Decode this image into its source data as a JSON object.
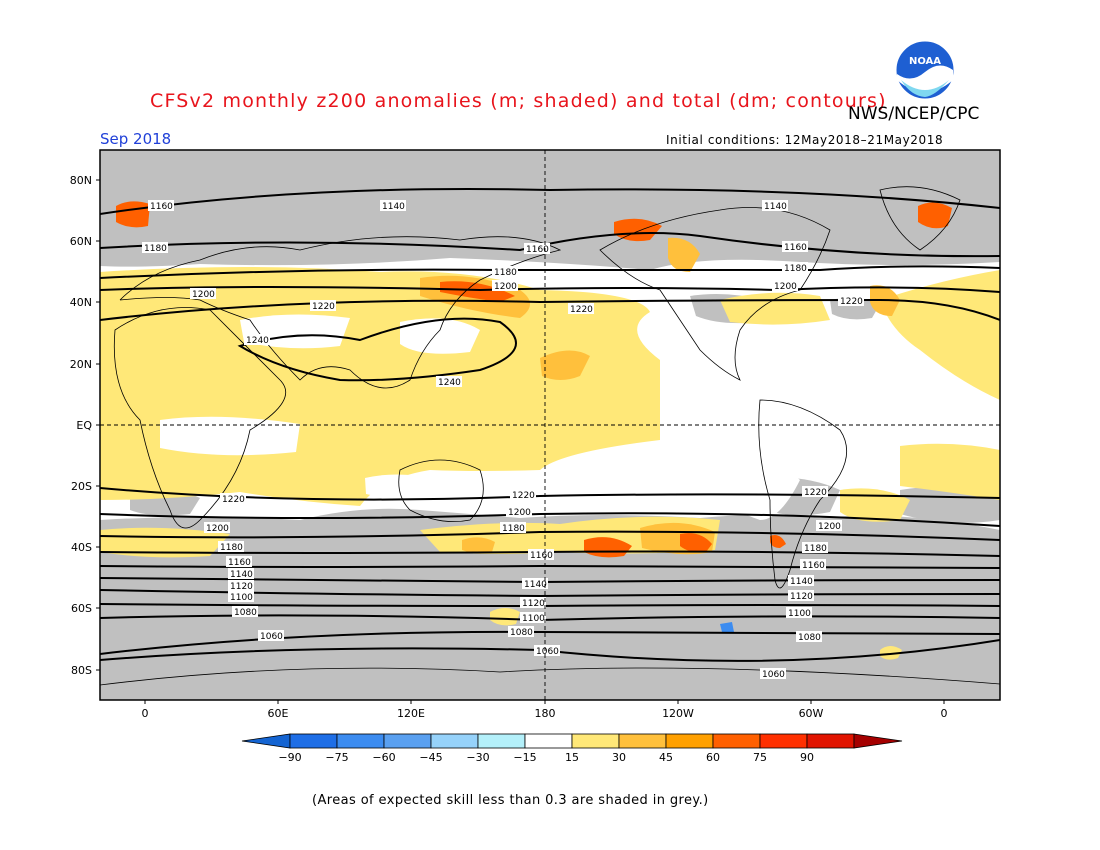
{
  "header": {
    "title": "CFSv2 monthly z200 anomalies (m; shaded) and total (dm; contours)",
    "agency": "NWS/NCEP/CPC",
    "month": "Sep 2018",
    "initial_conditions": "Initial conditions: 12May2018–21May2018"
  },
  "logo": {
    "text": "NOAA",
    "icon": "noaa-logo"
  },
  "axes": {
    "lat_labels": [
      "80N",
      "60N",
      "40N",
      "20N",
      "EQ",
      "20S",
      "40S",
      "60S",
      "80S"
    ],
    "lon_labels": [
      "0",
      "60E",
      "120E",
      "180",
      "120W",
      "60W",
      "0"
    ]
  },
  "colorbar": {
    "ticks": [
      "−90",
      "−75",
      "−60",
      "−45",
      "−30",
      "−15",
      "15",
      "30",
      "45",
      "60",
      "75",
      "90"
    ],
    "colors": [
      "#1464d2",
      "#1e6ee6",
      "#3c8cf0",
      "#5aa0f0",
      "#96d2fa",
      "#b4f0fa",
      "#ffffff",
      "#ffe878",
      "#ffc03c",
      "#ffa000",
      "#ff6000",
      "#ff3000",
      "#e11400",
      "#a50000"
    ]
  },
  "map_colors": {
    "grey": "#c0c0c0",
    "yellow": "#ffe878",
    "orange": "#ffc03c",
    "dark_orange": "#ff6000",
    "blue": "#3c8cf0"
  },
  "contour_labels": [
    "1060",
    "1080",
    "1100",
    "1120",
    "1140",
    "1160",
    "1180",
    "1200",
    "1220",
    "1240"
  ],
  "footnote": "(Areas of expected skill less than 0.3 are shaded in grey.)"
}
